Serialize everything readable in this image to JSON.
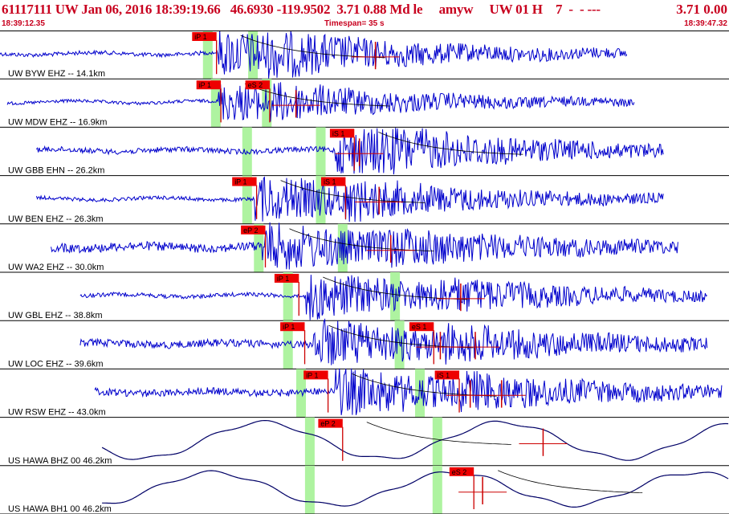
{
  "header": {
    "event_line": "61117111 UW Jan 06, 2016 18:39:19.66   46.6930 -119.9502  3.71 0.88 Md le     amyw     UW 01 H    7  -  - ---",
    "magnitude": "3.71 0.00",
    "start_time": "18:39:12.35",
    "timespan_label": "Timespan=",
    "timespan_value": "35 s",
    "end_time": "18:39:47.32"
  },
  "colors": {
    "header_text": "#c8001e",
    "wave_short_period": "#0000cc",
    "wave_broadband": "#000066",
    "pick_box": "#ee0000",
    "pick_line": "#cc0000",
    "window_band": "#aef3a0",
    "separator": "#000000"
  },
  "channels": [
    {
      "label": "UW BYW EHZ -- 14.1km",
      "type": "sp",
      "amp": 1.0,
      "wave_start": 0.0,
      "wave_end": 0.86,
      "onset": 0.3,
      "s_onset": 0.35,
      "noise": 0.3,
      "picks": [
        {
          "label": "iP 1",
          "pos": 0.297
        }
      ],
      "bands": [
        0.285,
        0.347
      ],
      "marks": [
        0.515
      ]
    },
    {
      "label": "UW MDW EHZ -- 16.9km",
      "type": "sp",
      "amp": 0.8,
      "wave_start": 0.01,
      "wave_end": 0.87,
      "onset": 0.3,
      "s_onset": 0.37,
      "noise": 0.3,
      "picks": [
        {
          "label": "iP 1",
          "pos": 0.303
        },
        {
          "label": "eS 2",
          "pos": 0.37
        }
      ],
      "bands": [
        0.296,
        0.366
      ],
      "marks": [
        0.406
      ]
    },
    {
      "label": "UW GBB EHN -- 26.2km",
      "type": "sp",
      "amp": 1.0,
      "wave_start": 0.05,
      "wave_end": 0.91,
      "onset": 0.46,
      "s_onset": 0.49,
      "noise": 0.45,
      "picks": [
        {
          "label": "iS 1",
          "pos": 0.486
        }
      ],
      "bands": [
        0.339,
        0.44
      ],
      "marks": [
        0.493
      ]
    },
    {
      "label": "UW BEN EHZ -- 26.3km",
      "type": "sp",
      "amp": 1.0,
      "wave_start": 0.05,
      "wave_end": 0.91,
      "onset": 0.35,
      "s_onset": 0.47,
      "noise": 0.25,
      "picks": [
        {
          "label": "iP 1",
          "pos": 0.352
        },
        {
          "label": "iS 1",
          "pos": 0.474
        }
      ],
      "bands": [
        0.339,
        0.44
      ],
      "marks": [
        0.52
      ]
    },
    {
      "label": "UW WA2 EHZ -- 30.0km",
      "type": "sp",
      "amp": 1.0,
      "wave_start": 0.07,
      "wave_end": 0.93,
      "onset": 0.36,
      "s_onset": 0.52,
      "noise": 0.85,
      "picks": [
        {
          "label": "eP 2",
          "pos": 0.364
        }
      ],
      "bands": [
        0.355,
        0.47
      ],
      "marks": [
        0.536
      ]
    },
    {
      "label": "UW GBL EHZ -- 38.8km",
      "type": "sp",
      "amp": 1.0,
      "wave_start": 0.11,
      "wave_end": 0.97,
      "onset": 0.42,
      "s_onset": 0.6,
      "noise": 0.3,
      "picks": [
        {
          "label": "iP 1",
          "pos": 0.41
        }
      ],
      "bands": [
        0.395,
        0.542
      ],
      "marks": [
        0.632
      ]
    },
    {
      "label": "UW LOC EHZ -- 39.6km",
      "type": "sp",
      "amp": 1.0,
      "wave_start": 0.11,
      "wave_end": 0.97,
      "onset": 0.43,
      "s_onset": 0.61,
      "noise": 0.7,
      "picks": [
        {
          "label": "iP 1",
          "pos": 0.418
        },
        {
          "label": "eS 1",
          "pos": 0.595
        }
      ],
      "bands": [
        0.395,
        0.548
      ],
      "marks": [
        0.604,
        0.652
      ]
    },
    {
      "label": "UW RSW EHZ -- 43.0km",
      "type": "sp",
      "amp": 1.0,
      "wave_start": 0.13,
      "wave_end": 0.99,
      "onset": 0.46,
      "s_onset": 0.63,
      "noise": 0.65,
      "picks": [
        {
          "label": "iP 1",
          "pos": 0.45
        },
        {
          "label": "iS 1",
          "pos": 0.63
        }
      ],
      "bands": [
        0.413,
        0.576
      ],
      "marks": [
        0.645,
        0.688
      ]
    },
    {
      "label": "US HAWA BHZ 00 46.2km",
      "type": "bb",
      "amp": 1.0,
      "wave_start": 0.14,
      "wave_end": 1.0,
      "onset": 0.46,
      "s_onset": 0.64,
      "noise": 0.0,
      "picks": [
        {
          "label": "eP 2",
          "pos": 0.47
        }
      ],
      "bands": [
        0.425,
        0.6
      ],
      "marks": [
        0.745
      ]
    },
    {
      "label": "US HAWA BH1 00 46.2km",
      "type": "bb",
      "amp": 0.9,
      "wave_start": 0.14,
      "wave_end": 1.0,
      "onset": 0.46,
      "s_onset": 0.64,
      "noise": 0.0,
      "picks": [
        {
          "label": "eS 2",
          "pos": 0.65
        }
      ],
      "bands": [
        0.425,
        0.6
      ],
      "marks": [
        0.662
      ]
    }
  ]
}
